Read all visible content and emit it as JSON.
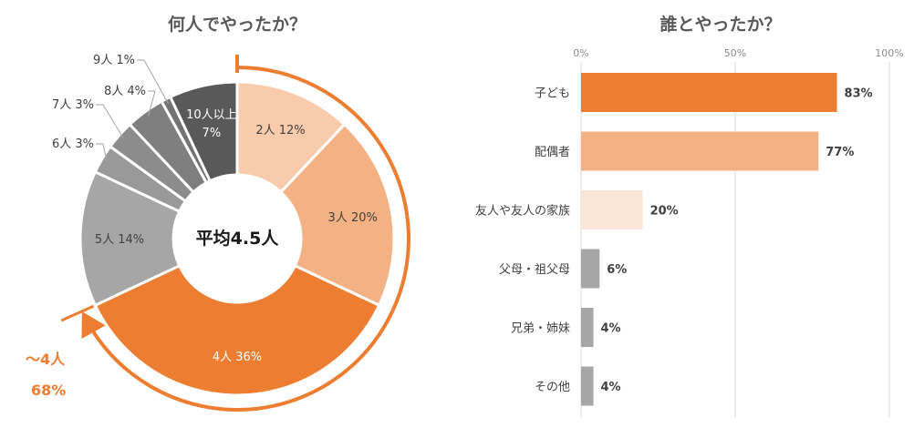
{
  "charts_titles": {
    "left": "何人でやったか？",
    "right": "誰とやったか？"
  },
  "donut": {
    "center_label": "平均4.5人",
    "callout_line1": "〜4人",
    "callout_line2": "68%"
  },
  "colors": {
    "orange": "#ED7D31",
    "light_orange": "#F4B183",
    "pale_orange": "#F8CBAD",
    "very_pale_orange": "#FBE5D6",
    "grey": "#A6A6A6",
    "dark_grey": "#595959",
    "mid_grey": "#7F7F7F",
    "grey_2": "#8C8C8C",
    "grey_3": "#999999",
    "grid": "#D9D9D9",
    "text": "#404040"
  },
  "chart_data": [
    {
      "type": "pie",
      "title": "何人でやったか？",
      "categories": [
        "2人",
        "3人",
        "4人",
        "5人",
        "6人",
        "7人",
        "8人",
        "9人",
        "10人以上"
      ],
      "values": [
        12,
        20,
        36,
        14,
        3,
        3,
        4,
        1,
        7
      ],
      "labels": [
        "2人 12%",
        "3人 20%",
        "4人 36%",
        "5人 14%",
        "6人 3%",
        "7人 3%",
        "8人 4%",
        "9人 1%",
        "10人以上 7%"
      ],
      "colors": [
        "#F8CBAD",
        "#F4B183",
        "#ED7D31",
        "#A6A6A6",
        "#999999",
        "#8C8C8C",
        "#7F7F7F",
        "#737373",
        "#595959"
      ],
      "label_colors": [
        "#404040",
        "#404040",
        "#ffffff",
        "#404040",
        "#404040",
        "#404040",
        "#404040",
        "#404040",
        "#ffffff"
      ],
      "outside_label": [
        false,
        false,
        false,
        false,
        true,
        true,
        true,
        true,
        false
      ]
    },
    {
      "type": "bar",
      "orientation": "horizontal",
      "title": "誰とやったか？",
      "categories": [
        "子ども",
        "配偶者",
        "友人や友人の家族",
        "父母・祖父母",
        "兄弟・姉妹",
        "その他"
      ],
      "values": [
        83,
        77,
        20,
        6,
        4,
        4
      ],
      "value_labels": [
        "83%",
        "77%",
        "20%",
        "6%",
        "4%",
        "4%"
      ],
      "colors": [
        "#ED7D31",
        "#F4B183",
        "#FBE5D6",
        "#A6A6A6",
        "#A6A6A6",
        "#A6A6A6"
      ],
      "xlim": [
        0,
        100
      ],
      "xticks": [
        0,
        50,
        100
      ],
      "xtick_labels": [
        "0%",
        "50%",
        "100%"
      ],
      "grid": true
    }
  ]
}
